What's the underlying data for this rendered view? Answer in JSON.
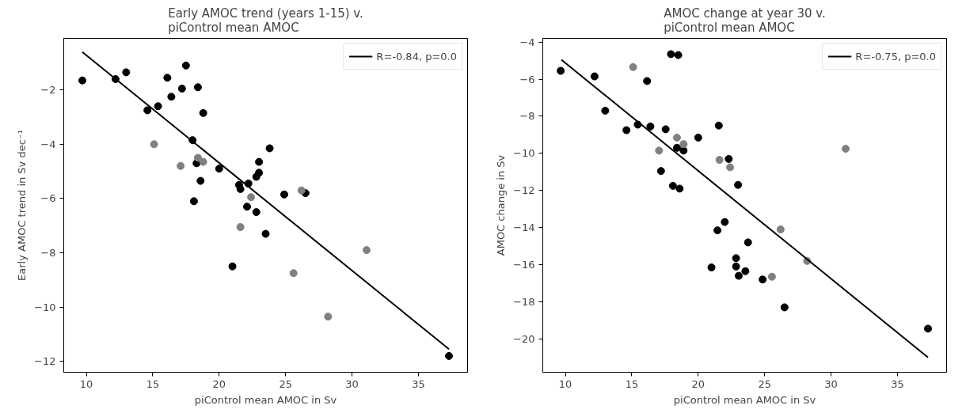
{
  "chart_data": [
    {
      "type": "scatter",
      "title": "Early AMOC trend (years 1-15) v.\npiControl mean AMOC",
      "xlabel": "piControl mean AMOC in Sv",
      "ylabel": "Early AMOC trend in Sv dec⁻¹",
      "xlim": [
        8.3,
        38.7
      ],
      "ylim": [
        -12.4,
        -0.1
      ],
      "xticks": [
        10,
        15,
        20,
        25,
        30,
        35
      ],
      "yticks": [
        -12,
        -10,
        -8,
        -6,
        -4,
        -2
      ],
      "grid": false,
      "legend": "top right",
      "marker": "circle",
      "series": [
        {
          "color": "#000000",
          "x": [
            9.7,
            12.2,
            13.0,
            14.6,
            15.4,
            16.1,
            16.4,
            17.2,
            17.5,
            18.4,
            18.8,
            18.0,
            18.3,
            18.6,
            18.1,
            20.0,
            21.5,
            21.6,
            22.2,
            22.1,
            22.8,
            22.8,
            23.0,
            23.0,
            23.5,
            23.8,
            24.9,
            26.5,
            21.0,
            37.3
          ],
          "values": [
            -1.65,
            -1.6,
            -1.35,
            -2.75,
            -2.6,
            -1.55,
            -2.25,
            -1.95,
            -1.1,
            -1.9,
            -2.85,
            -3.85,
            -4.7,
            -5.35,
            -6.1,
            -4.9,
            -5.5,
            -5.65,
            -5.45,
            -6.3,
            -6.5,
            -5.2,
            -5.05,
            -4.65,
            -7.3,
            -4.15,
            -5.85,
            -5.8,
            -8.5,
            -11.8
          ]
        },
        {
          "color": "#808080",
          "x": [
            15.1,
            17.1,
            18.4,
            18.8,
            21.6,
            22.4,
            26.2,
            25.6,
            28.2,
            31.1
          ],
          "values": [
            -4.0,
            -4.8,
            -4.5,
            -4.65,
            -7.05,
            -5.95,
            -5.7,
            -8.75,
            -10.35,
            -7.9
          ]
        },
        {
          "type": "line",
          "name": "R=-0.84, p=0.0",
          "color": "#000000",
          "x": [
            9.7,
            37.3
          ],
          "values": [
            -0.6,
            -11.55
          ],
          "line_style": "solid",
          "marker": "none"
        }
      ]
    },
    {
      "type": "scatter",
      "title": "AMOC change at year 30 v.\npiControl mean AMOC",
      "xlabel": "piControl mean AMOC in Sv",
      "ylabel": "AMOC change in Sv",
      "xlim": [
        8.3,
        38.7
      ],
      "ylim": [
        -21.8,
        -3.8
      ],
      "xticks": [
        10,
        15,
        20,
        25,
        30,
        35
      ],
      "yticks": [
        -20,
        -18,
        -16,
        -14,
        -12,
        -10,
        -8,
        -6,
        -4
      ],
      "grid": false,
      "legend": "top right",
      "marker": "circle",
      "series": [
        {
          "color": "#000000",
          "x": [
            9.65,
            12.2,
            13.0,
            14.6,
            15.45,
            16.4,
            16.15,
            17.95,
            18.5,
            17.55,
            17.2,
            18.1,
            18.6,
            18.4,
            18.9,
            20.0,
            21.55,
            22.3,
            23.0,
            21.45,
            22.0,
            23.75,
            22.85,
            22.85,
            23.05,
            23.55,
            21.0,
            24.85,
            26.5,
            37.3
          ],
          "values": [
            -5.55,
            -5.85,
            -7.7,
            -8.75,
            -8.45,
            -8.55,
            -6.1,
            -4.65,
            -4.7,
            -8.7,
            -10.95,
            -11.75,
            -11.9,
            -9.7,
            -9.85,
            -9.15,
            -8.5,
            -10.3,
            -11.7,
            -14.15,
            -13.7,
            -14.8,
            -15.65,
            -16.1,
            -16.6,
            -16.35,
            -16.15,
            -16.8,
            -18.3,
            -19.45
          ]
        },
        {
          "color": "#808080",
          "x": [
            15.1,
            17.05,
            18.4,
            18.9,
            21.6,
            22.4,
            25.55,
            26.2,
            28.2,
            31.1
          ],
          "values": [
            -5.35,
            -9.85,
            -9.15,
            -9.5,
            -10.35,
            -10.75,
            -16.65,
            -14.1,
            -15.8,
            -9.75
          ]
        },
        {
          "type": "line",
          "name": "R=-0.75, p=0.0",
          "color": "#000000",
          "x": [
            9.7,
            37.3
          ],
          "values": [
            -4.95,
            -21.0
          ],
          "line_style": "solid",
          "marker": "none"
        }
      ]
    }
  ]
}
